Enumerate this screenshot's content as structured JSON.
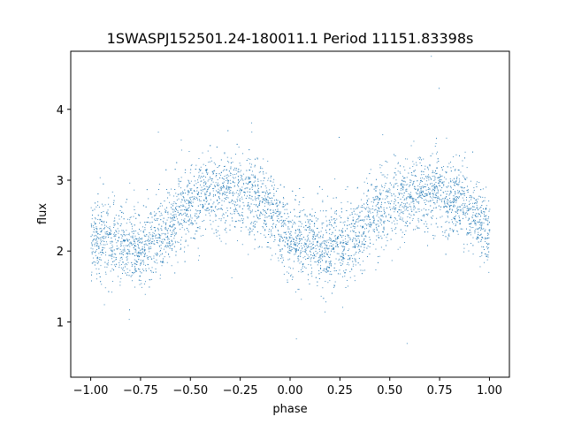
{
  "chart_data": {
    "type": "scatter",
    "title": "1SWASPJ152501.24-180011.1 Period 11151.83398s",
    "xlabel": "phase",
    "ylabel": "flux",
    "xlim": [
      -1.1,
      1.1
    ],
    "ylim": [
      0.22,
      4.82
    ],
    "x_ticks": [
      -1.0,
      -0.75,
      -0.5,
      -0.25,
      0.0,
      0.25,
      0.5,
      0.75,
      1.0
    ],
    "x_tick_labels": [
      "−1.00",
      "−0.75",
      "−0.50",
      "−0.25",
      "0.00",
      "0.25",
      "0.50",
      "0.75",
      "1.00"
    ],
    "y_ticks": [
      1,
      2,
      3,
      4
    ],
    "y_tick_labels": [
      "1",
      "2",
      "3",
      "4"
    ],
    "grid": false,
    "point_color": "#1f77b4",
    "series": [
      {
        "x": [
          -1.0,
          -0.9,
          -0.8,
          -0.7,
          -0.6,
          -0.5,
          -0.4,
          -0.3,
          -0.2,
          -0.1,
          0.0,
          0.1,
          0.2,
          0.3,
          0.4,
          0.5,
          0.6,
          0.7,
          0.8,
          0.9,
          1.0
        ],
        "y": [
          2.2,
          2.12,
          2.05,
          2.1,
          2.4,
          2.7,
          2.82,
          2.85,
          2.8,
          2.55,
          2.2,
          2.08,
          2.05,
          2.15,
          2.45,
          2.72,
          2.8,
          2.85,
          2.78,
          2.55,
          2.25
        ]
      }
    ]
  }
}
